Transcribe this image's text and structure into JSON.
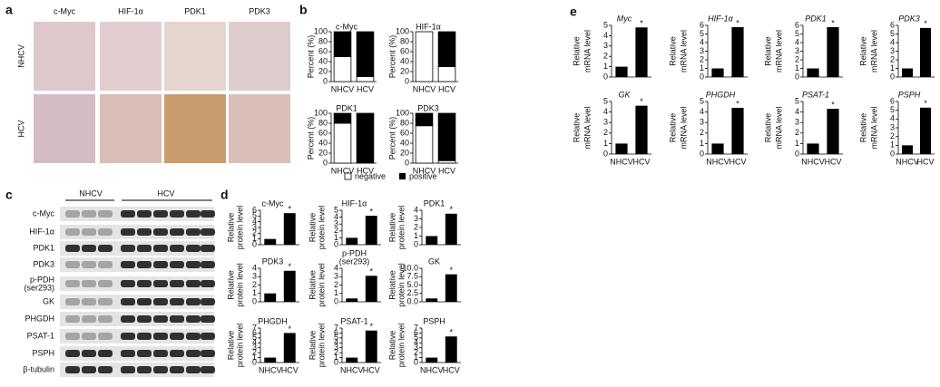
{
  "panel_labels": [
    "a",
    "b",
    "c",
    "d",
    "e"
  ],
  "panel_a": {
    "columns": [
      "c-Myc",
      "HIF-1α",
      "PDK1",
      "PDK3"
    ],
    "rows": [
      "NHCV",
      "HCV"
    ]
  },
  "panel_c": {
    "groups": [
      "NHCV",
      "HCV"
    ],
    "rows": [
      "c-Myc",
      "HIF-1α",
      "PDK1",
      "PDK3",
      [
        "p-PDH",
        "(ser293)"
      ],
      "GK",
      "PHGDH",
      "PSAT-1",
      "PSPH",
      "β-tubulin"
    ]
  },
  "chart_data": [
    {
      "type": "stacked_bar",
      "title": "c-Myc",
      "ylabel": [
        "Percent (%)"
      ],
      "categories": [
        "NHCV",
        "HCV"
      ],
      "series": [
        {
          "name": "negative",
          "color": "#ffffff",
          "values": [
            50,
            10
          ]
        },
        {
          "name": "positive",
          "color": "#000000",
          "values": [
            50,
            90
          ]
        }
      ],
      "ylim": [
        0,
        100
      ],
      "yticks": [
        0,
        20,
        40,
        60,
        80,
        100
      ]
    },
    {
      "type": "stacked_bar",
      "title": "HIF-1α",
      "ylabel": [
        "Percent (%)"
      ],
      "categories": [
        "NHCV",
        "HCV"
      ],
      "series": [
        {
          "color": "#ffffff",
          "values": [
            100,
            30
          ]
        },
        {
          "color": "#000000",
          "values": [
            0,
            70
          ]
        }
      ],
      "ylim": [
        0,
        100
      ],
      "yticks": [
        0,
        20,
        40,
        60,
        80,
        100
      ]
    },
    {
      "type": "stacked_bar",
      "title": "PDK1",
      "ylabel": [
        "Percent (%)"
      ],
      "categories": [
        "NHCV",
        "HCV"
      ],
      "series": [
        {
          "color": "#ffffff",
          "values": [
            80,
            0
          ]
        },
        {
          "color": "#000000",
          "values": [
            20,
            100
          ]
        }
      ],
      "ylim": [
        0,
        100
      ],
      "yticks": [
        0,
        20,
        40,
        60,
        80,
        100
      ]
    },
    {
      "type": "stacked_bar",
      "title": "PDK3",
      "ylabel": [
        "Percent (%)"
      ],
      "categories": [
        "NHCV",
        "HCV"
      ],
      "series": [
        {
          "color": "#ffffff",
          "values": [
            75,
            5
          ]
        },
        {
          "color": "#000000",
          "values": [
            25,
            95
          ]
        }
      ],
      "ylim": [
        0,
        100
      ],
      "yticks": [
        0,
        20,
        40,
        60,
        80,
        100
      ]
    },
    {
      "type": "bar",
      "title": [
        "c-Myc"
      ],
      "ylabel": [
        "Relative",
        "protein level"
      ],
      "categories": [
        null,
        null
      ],
      "values": [
        1,
        5.5
      ],
      "color": "#000000",
      "annotation": "*",
      "ylim": [
        0,
        6
      ],
      "yticks": [
        0,
        1,
        2,
        3,
        4,
        5,
        6
      ]
    },
    {
      "type": "bar",
      "title": [
        "HIF-1α"
      ],
      "ylabel": [
        "Relative",
        "protein level"
      ],
      "categories": [
        null,
        null
      ],
      "values": [
        1,
        4.2
      ],
      "color": "#000000",
      "annotation": "*",
      "ylim": [
        0,
        5
      ],
      "yticks": [
        0,
        1,
        2,
        3,
        4,
        5
      ]
    },
    {
      "type": "bar",
      "title": [
        "PDK1"
      ],
      "ylabel": [
        "Relative",
        "protein level"
      ],
      "categories": [
        null,
        null
      ],
      "values": [
        1,
        3.6
      ],
      "color": "#000000",
      "annotation": "*",
      "ylim": [
        0,
        4
      ],
      "yticks": [
        0,
        1,
        2,
        3,
        4
      ]
    },
    {
      "type": "bar",
      "title": [
        "PDK3"
      ],
      "ylabel": [
        "Relative",
        "protein level"
      ],
      "categories": [
        null,
        null
      ],
      "values": [
        1,
        3.7
      ],
      "color": "#000000",
      "annotation": "*",
      "ylim": [
        0,
        4
      ],
      "yticks": [
        0,
        1,
        2,
        3,
        4
      ]
    },
    {
      "type": "bar",
      "title": [
        "p-PDH",
        "(ser293)"
      ],
      "ylabel": [
        "Relative",
        "protein level"
      ],
      "categories": [
        null,
        null
      ],
      "values": [
        0.4,
        3.1
      ],
      "color": "#000000",
      "annotation": "*",
      "ylim": [
        0,
        4
      ],
      "yticks": [
        0,
        1,
        2,
        3,
        4
      ]
    },
    {
      "type": "bar",
      "title": [
        "GK"
      ],
      "ylabel": [
        "Relative",
        "protein level"
      ],
      "categories": [
        null,
        null
      ],
      "values": [
        1,
        8.2
      ],
      "color": "#000000",
      "annotation": "*",
      "ylim": [
        0,
        10
      ],
      "yticks": [
        {
          "value": 0,
          "label": "0.0"
        },
        {
          "value": 2.5,
          "label": "2.5"
        },
        {
          "value": 5,
          "label": "5.0"
        },
        {
          "value": 7.5,
          "label": "7.5"
        },
        {
          "value": 10,
          "label": "10.0"
        }
      ]
    },
    {
      "type": "bar",
      "title": [
        "PHGDH"
      ],
      "ylabel": [
        "Relative",
        "protein level"
      ],
      "categories": [
        "NHCV",
        "HCV"
      ],
      "values": [
        1,
        6
      ],
      "color": "#000000",
      "annotation": "*",
      "ylim": [
        0,
        7
      ],
      "yticks": [
        0,
        1,
        2,
        3,
        4,
        5,
        6,
        7
      ]
    },
    {
      "type": "bar",
      "title": [
        "PSAT-1"
      ],
      "ylabel": [
        "Relative",
        "protein level"
      ],
      "categories": [
        "NHCV",
        "HCV"
      ],
      "values": [
        1,
        6.5
      ],
      "color": "#000000",
      "annotation": "*",
      "ylim": [
        0,
        7
      ],
      "yticks": [
        0,
        1,
        2,
        3,
        4,
        5,
        6,
        7
      ]
    },
    {
      "type": "bar",
      "title": [
        "PSPH"
      ],
      "ylabel": [
        "Relative",
        "protein level"
      ],
      "categories": [
        "NHCV",
        "HCV"
      ],
      "values": [
        1,
        5.3
      ],
      "color": "#000000",
      "annotation": "*",
      "ylim": [
        0,
        7
      ],
      "yticks": [
        0,
        1,
        2,
        3,
        4,
        5,
        6,
        7
      ]
    },
    {
      "type": "bar",
      "title": [
        "Myc"
      ],
      "ylabel": [
        "Relative",
        "mRNA level"
      ],
      "categories": [
        null,
        null
      ],
      "values": [
        1,
        4.8
      ],
      "color": "#000000",
      "annotation": "*",
      "ylim": [
        0,
        5
      ],
      "yticks": [
        0,
        1,
        2,
        3,
        4,
        5
      ]
    },
    {
      "type": "bar",
      "title": [
        "HIF-1α"
      ],
      "ylabel": [
        "Relative",
        "mRNA level"
      ],
      "categories": [
        null,
        null
      ],
      "values": [
        1,
        5.8
      ],
      "color": "#000000",
      "annotation": "*",
      "ylim": [
        0,
        6
      ],
      "yticks": [
        0,
        1,
        2,
        3,
        4,
        5,
        6
      ]
    },
    {
      "type": "bar",
      "title": [
        "PDK1"
      ],
      "ylabel": [
        "Relative",
        "mRNA level"
      ],
      "categories": [
        null,
        null
      ],
      "values": [
        1,
        5.8
      ],
      "color": "#000000",
      "annotation": "*",
      "ylim": [
        0,
        6
      ],
      "yticks": [
        0,
        1,
        2,
        3,
        4,
        5,
        6
      ]
    },
    {
      "type": "bar",
      "title": [
        "PDK3"
      ],
      "ylabel": [
        "Relative",
        "mRNA level"
      ],
      "categories": [
        null,
        null
      ],
      "values": [
        1,
        5.7
      ],
      "color": "#000000",
      "annotation": "*",
      "ylim": [
        0,
        6
      ],
      "yticks": [
        0,
        1,
        2,
        3,
        4,
        5,
        6
      ]
    },
    {
      "type": "bar",
      "title": [
        "GK"
      ],
      "ylabel": [
        "Relative",
        "mRNA level"
      ],
      "categories": [
        "NHCV",
        "HCV"
      ],
      "values": [
        1,
        4.6
      ],
      "color": "#000000",
      "annotation": "*",
      "ylim": [
        0,
        5
      ],
      "yticks": [
        0,
        1,
        2,
        3,
        4,
        5
      ]
    },
    {
      "type": "bar",
      "title": [
        "PHGDH"
      ],
      "ylabel": [
        "Relative",
        "mRNA level"
      ],
      "categories": [
        "NHCV",
        "HCV"
      ],
      "values": [
        1,
        4.4
      ],
      "color": "#000000",
      "annotation": "*",
      "ylim": [
        0,
        5
      ],
      "yticks": [
        0,
        1,
        2,
        3,
        4,
        5
      ]
    },
    {
      "type": "bar",
      "title": [
        "PSAT-1"
      ],
      "ylabel": [
        "Relative",
        "mRNA level"
      ],
      "categories": [
        "NHCV",
        "HCV"
      ],
      "values": [
        1,
        4.3
      ],
      "color": "#000000",
      "annotation": "*",
      "ylim": [
        0,
        5
      ],
      "yticks": [
        0,
        1,
        2,
        3,
        4,
        5
      ]
    },
    {
      "type": "bar",
      "title": [
        "PSPH"
      ],
      "ylabel": [
        "Relative",
        "mRNA level"
      ],
      "categories": [
        "NHCV",
        "HCV"
      ],
      "values": [
        1,
        5.3
      ],
      "color": "#000000",
      "annotation": "*",
      "ylim": [
        0,
        6
      ],
      "yticks": [
        0,
        1,
        2,
        3,
        4,
        5,
        6
      ]
    }
  ]
}
